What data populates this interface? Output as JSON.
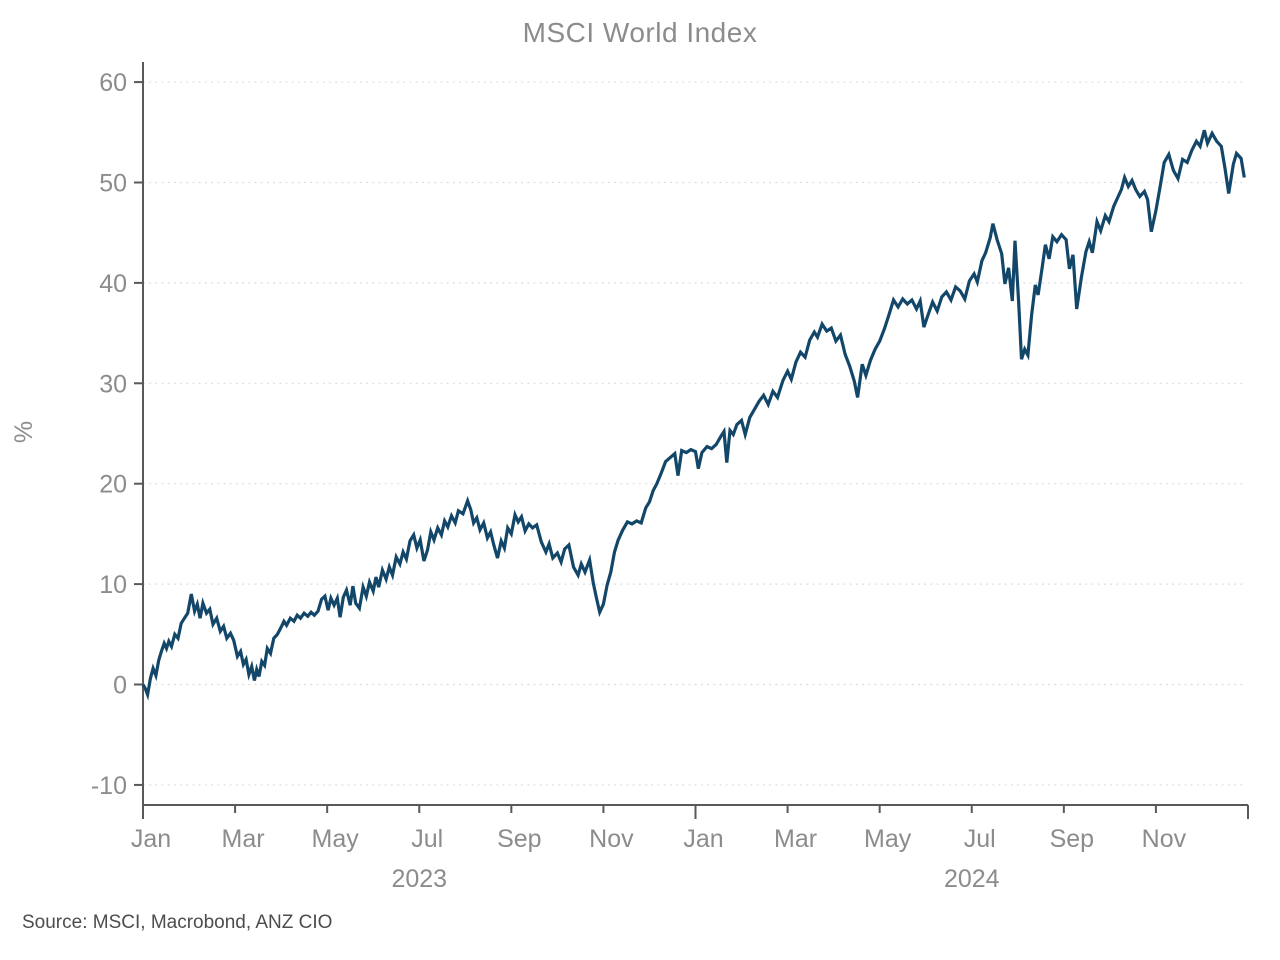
{
  "title": "MSCI World Index",
  "source_note": "Source: MSCI, Macrobond, ANZ CIO",
  "colors": {
    "background": "#ffffff",
    "line": "#13476a",
    "axis": "#595959",
    "tick_label": "#8c8c8c",
    "grid": "#dadada",
    "title": "#8c8c8c",
    "source": "#4d4d4d"
  },
  "chart_data": {
    "type": "line",
    "title": "MSCI World Index",
    "xlabel": "",
    "ylabel": "%",
    "ylim": [
      -12,
      62
    ],
    "yticks": [
      -10,
      0,
      10,
      20,
      30,
      40,
      50,
      60
    ],
    "grid": "horizontal-dotted",
    "legend_position": "none",
    "x_axis": {
      "unit": "months since Jan 2023",
      "range": [
        0,
        24
      ],
      "years": [
        {
          "label": "2023",
          "start_m": 0,
          "ticks": [
            {
              "label": "Jan",
              "m": 0
            },
            {
              "label": "Mar",
              "m": 2
            },
            {
              "label": "May",
              "m": 4
            },
            {
              "label": "Jul",
              "m": 6
            },
            {
              "label": "Sep",
              "m": 8
            },
            {
              "label": "Nov",
              "m": 10
            }
          ]
        },
        {
          "label": "2024",
          "start_m": 12,
          "ticks": [
            {
              "label": "Jan",
              "m": 12
            },
            {
              "label": "Mar",
              "m": 14
            },
            {
              "label": "May",
              "m": 16
            },
            {
              "label": "Jul",
              "m": 18
            },
            {
              "label": "Sep",
              "m": 20
            },
            {
              "label": "Nov",
              "m": 22
            }
          ]
        }
      ],
      "end_tick_m": 24
    },
    "series": [
      {
        "name": "MSCI World Index",
        "color": "#13476a",
        "points": [
          [
            0,
            0
          ],
          [
            0.05,
            -0.4
          ],
          [
            0.1,
            -1
          ],
          [
            0.16,
            0.6
          ],
          [
            0.22,
            1.6
          ],
          [
            0.28,
            0.9
          ],
          [
            0.34,
            2.4
          ],
          [
            0.4,
            3.3
          ],
          [
            0.46,
            4.1
          ],
          [
            0.51,
            3.6
          ],
          [
            0.56,
            4.3
          ],
          [
            0.62,
            3.8
          ],
          [
            0.69,
            5
          ],
          [
            0.76,
            4.6
          ],
          [
            0.83,
            6.1
          ],
          [
            0.9,
            6.6
          ],
          [
            0.97,
            7.1
          ],
          [
            1.05,
            9
          ],
          [
            1.12,
            7.3
          ],
          [
            1.18,
            8
          ],
          [
            1.24,
            6.6
          ],
          [
            1.3,
            8.1
          ],
          [
            1.38,
            7.1
          ],
          [
            1.45,
            7.5
          ],
          [
            1.52,
            6
          ],
          [
            1.6,
            6.6
          ],
          [
            1.68,
            5.3
          ],
          [
            1.75,
            5.8
          ],
          [
            1.82,
            4.6
          ],
          [
            1.9,
            5.1
          ],
          [
            1.97,
            4.4
          ],
          [
            2.05,
            2.8
          ],
          [
            2.12,
            3.3
          ],
          [
            2.18,
            2
          ],
          [
            2.24,
            2.5
          ],
          [
            2.3,
            1
          ],
          [
            2.36,
            1.8
          ],
          [
            2.42,
            0.4
          ],
          [
            2.47,
            1.5
          ],
          [
            2.52,
            0.8
          ],
          [
            2.58,
            2.3
          ],
          [
            2.64,
            1.9
          ],
          [
            2.7,
            3.6
          ],
          [
            2.77,
            3.1
          ],
          [
            2.84,
            4.6
          ],
          [
            2.92,
            5
          ],
          [
            3,
            5.7
          ],
          [
            3.06,
            6.3
          ],
          [
            3.12,
            5.9
          ],
          [
            3.2,
            6.6
          ],
          [
            3.28,
            6.3
          ],
          [
            3.35,
            6.9
          ],
          [
            3.42,
            6.6
          ],
          [
            3.5,
            7.1
          ],
          [
            3.58,
            6.8
          ],
          [
            3.65,
            7.2
          ],
          [
            3.72,
            6.9
          ],
          [
            3.8,
            7.3
          ],
          [
            3.88,
            8.5
          ],
          [
            3.95,
            8.8
          ],
          [
            4.02,
            7.4
          ],
          [
            4.08,
            8.6
          ],
          [
            4.15,
            7.9
          ],
          [
            4.22,
            8.6
          ],
          [
            4.28,
            6.7
          ],
          [
            4.35,
            8.7
          ],
          [
            4.42,
            9.4
          ],
          [
            4.5,
            7.9
          ],
          [
            4.56,
            9.8
          ],
          [
            4.62,
            8.1
          ],
          [
            4.7,
            7.6
          ],
          [
            4.78,
            9.7
          ],
          [
            4.85,
            8.8
          ],
          [
            4.92,
            10.2
          ],
          [
            5,
            9.3
          ],
          [
            5.06,
            10.7
          ],
          [
            5.12,
            9.7
          ],
          [
            5.2,
            11.4
          ],
          [
            5.28,
            10.5
          ],
          [
            5.35,
            11.7
          ],
          [
            5.42,
            10.9
          ],
          [
            5.5,
            12.7
          ],
          [
            5.58,
            12
          ],
          [
            5.65,
            13.2
          ],
          [
            5.72,
            12.5
          ],
          [
            5.8,
            14.3
          ],
          [
            5.88,
            14.9
          ],
          [
            5.95,
            13.6
          ],
          [
            6.02,
            14.4
          ],
          [
            6.1,
            12.3
          ],
          [
            6.18,
            13.4
          ],
          [
            6.25,
            15.2
          ],
          [
            6.32,
            14.4
          ],
          [
            6.4,
            15.6
          ],
          [
            6.48,
            14.9
          ],
          [
            6.55,
            16.3
          ],
          [
            6.62,
            15.7
          ],
          [
            6.7,
            16.8
          ],
          [
            6.78,
            16.1
          ],
          [
            6.85,
            17.3
          ],
          [
            6.95,
            17
          ],
          [
            7.05,
            18.3
          ],
          [
            7.12,
            17.4
          ],
          [
            7.18,
            16.1
          ],
          [
            7.25,
            16.6
          ],
          [
            7.32,
            15.4
          ],
          [
            7.4,
            16.1
          ],
          [
            7.48,
            14.6
          ],
          [
            7.55,
            15.2
          ],
          [
            7.62,
            13.9
          ],
          [
            7.7,
            12.6
          ],
          [
            7.78,
            14.3
          ],
          [
            7.85,
            13.6
          ],
          [
            7.92,
            15.6
          ],
          [
            8,
            15
          ],
          [
            8.08,
            16.9
          ],
          [
            8.15,
            16.2
          ],
          [
            8.22,
            16.7
          ],
          [
            8.3,
            15.3
          ],
          [
            8.38,
            16
          ],
          [
            8.46,
            15.6
          ],
          [
            8.55,
            15.9
          ],
          [
            8.65,
            14.2
          ],
          [
            8.75,
            13.2
          ],
          [
            8.82,
            14
          ],
          [
            8.9,
            12.6
          ],
          [
            9,
            13.1
          ],
          [
            9.08,
            12.2
          ],
          [
            9.16,
            13.5
          ],
          [
            9.25,
            13.9
          ],
          [
            9.35,
            11.7
          ],
          [
            9.45,
            10.9
          ],
          [
            9.52,
            12
          ],
          [
            9.6,
            11.2
          ],
          [
            9.7,
            12.4
          ],
          [
            9.78,
            10.1
          ],
          [
            9.85,
            8.6
          ],
          [
            9.92,
            7.2
          ],
          [
            10,
            8
          ],
          [
            10.08,
            9.9
          ],
          [
            10.16,
            11.2
          ],
          [
            10.24,
            13.2
          ],
          [
            10.32,
            14.4
          ],
          [
            10.42,
            15.4
          ],
          [
            10.52,
            16.2
          ],
          [
            10.62,
            16
          ],
          [
            10.72,
            16.3
          ],
          [
            10.82,
            16.1
          ],
          [
            10.92,
            17.6
          ],
          [
            11,
            18.2
          ],
          [
            11.08,
            19.3
          ],
          [
            11.16,
            20
          ],
          [
            11.25,
            21
          ],
          [
            11.35,
            22.2
          ],
          [
            11.45,
            22.6
          ],
          [
            11.55,
            23
          ],
          [
            11.62,
            20.8
          ],
          [
            11.7,
            23.3
          ],
          [
            11.8,
            23.1
          ],
          [
            11.9,
            23.4
          ],
          [
            12,
            23.2
          ],
          [
            12.06,
            21.5
          ],
          [
            12.14,
            23.1
          ],
          [
            12.25,
            23.7
          ],
          [
            12.35,
            23.5
          ],
          [
            12.45,
            23.9
          ],
          [
            12.55,
            24.7
          ],
          [
            12.62,
            25.2
          ],
          [
            12.68,
            22.1
          ],
          [
            12.75,
            25.3
          ],
          [
            12.82,
            24.9
          ],
          [
            12.9,
            25.9
          ],
          [
            13,
            26.3
          ],
          [
            13.08,
            24.9
          ],
          [
            13.18,
            26.6
          ],
          [
            13.28,
            27.4
          ],
          [
            13.38,
            28.2
          ],
          [
            13.48,
            28.8
          ],
          [
            13.58,
            27.9
          ],
          [
            13.68,
            29.2
          ],
          [
            13.78,
            28.6
          ],
          [
            13.9,
            30.3
          ],
          [
            14,
            31.2
          ],
          [
            14.08,
            30.4
          ],
          [
            14.18,
            32.1
          ],
          [
            14.28,
            33.1
          ],
          [
            14.38,
            32.6
          ],
          [
            14.48,
            34.3
          ],
          [
            14.58,
            35.1
          ],
          [
            14.65,
            34.6
          ],
          [
            14.75,
            35.9
          ],
          [
            14.85,
            35.2
          ],
          [
            14.95,
            35.5
          ],
          [
            15.05,
            34.2
          ],
          [
            15.15,
            34.8
          ],
          [
            15.25,
            32.9
          ],
          [
            15.35,
            31.7
          ],
          [
            15.45,
            30.2
          ],
          [
            15.52,
            28.6
          ],
          [
            15.62,
            31.9
          ],
          [
            15.7,
            30.8
          ],
          [
            15.8,
            32.3
          ],
          [
            15.9,
            33.4
          ],
          [
            16,
            34.2
          ],
          [
            16.1,
            35.4
          ],
          [
            16.2,
            36.8
          ],
          [
            16.3,
            38.3
          ],
          [
            16.4,
            37.6
          ],
          [
            16.5,
            38.4
          ],
          [
            16.6,
            37.9
          ],
          [
            16.7,
            38.3
          ],
          [
            16.8,
            37.4
          ],
          [
            16.88,
            38.2
          ],
          [
            16.96,
            35.6
          ],
          [
            17.05,
            36.8
          ],
          [
            17.15,
            38.1
          ],
          [
            17.25,
            37.2
          ],
          [
            17.35,
            38.6
          ],
          [
            17.45,
            39.1
          ],
          [
            17.55,
            38.3
          ],
          [
            17.65,
            39.6
          ],
          [
            17.75,
            39.2
          ],
          [
            17.85,
            38.4
          ],
          [
            17.95,
            40.2
          ],
          [
            18.05,
            40.9
          ],
          [
            18.12,
            40.1
          ],
          [
            18.22,
            42.2
          ],
          [
            18.3,
            43
          ],
          [
            18.4,
            44.5
          ],
          [
            18.46,
            45.9
          ],
          [
            18.55,
            44.3
          ],
          [
            18.65,
            42.9
          ],
          [
            18.72,
            39.9
          ],
          [
            18.8,
            41.5
          ],
          [
            18.88,
            38.2
          ],
          [
            18.94,
            44.2
          ],
          [
            19.02,
            38
          ],
          [
            19.08,
            32.4
          ],
          [
            19.15,
            33.4
          ],
          [
            19.22,
            32.8
          ],
          [
            19.3,
            36.8
          ],
          [
            19.38,
            39.8
          ],
          [
            19.44,
            38.8
          ],
          [
            19.52,
            41.2
          ],
          [
            19.6,
            43.8
          ],
          [
            19.68,
            42.4
          ],
          [
            19.76,
            44.6
          ],
          [
            19.85,
            44.1
          ],
          [
            19.95,
            44.8
          ],
          [
            20.05,
            44.3
          ],
          [
            20.12,
            41.4
          ],
          [
            20.2,
            42.8
          ],
          [
            20.28,
            37.4
          ],
          [
            20.38,
            40.5
          ],
          [
            20.48,
            43.1
          ],
          [
            20.55,
            44.1
          ],
          [
            20.62,
            43
          ],
          [
            20.72,
            46.1
          ],
          [
            20.8,
            45.2
          ],
          [
            20.9,
            46.7
          ],
          [
            20.98,
            46.1
          ],
          [
            21.08,
            47.6
          ],
          [
            21.16,
            48.4
          ],
          [
            21.25,
            49.3
          ],
          [
            21.32,
            50.5
          ],
          [
            21.4,
            49.6
          ],
          [
            21.48,
            50.2
          ],
          [
            21.56,
            49.3
          ],
          [
            21.65,
            48.6
          ],
          [
            21.75,
            49.1
          ],
          [
            21.82,
            48.3
          ],
          [
            21.9,
            45.1
          ],
          [
            22,
            47.2
          ],
          [
            22.1,
            49.8
          ],
          [
            22.18,
            52
          ],
          [
            22.28,
            52.8
          ],
          [
            22.38,
            51.2
          ],
          [
            22.48,
            50.4
          ],
          [
            22.58,
            52.3
          ],
          [
            22.68,
            52
          ],
          [
            22.78,
            53.2
          ],
          [
            22.88,
            54.1
          ],
          [
            22.96,
            53.6
          ],
          [
            23.05,
            55.2
          ],
          [
            23.12,
            53.9
          ],
          [
            23.22,
            54.9
          ],
          [
            23.32,
            54.1
          ],
          [
            23.42,
            53.6
          ],
          [
            23.5,
            51.4
          ],
          [
            23.58,
            48.9
          ],
          [
            23.68,
            51.8
          ],
          [
            23.75,
            52.9
          ],
          [
            23.85,
            52.4
          ],
          [
            23.92,
            50.5
          ]
        ]
      }
    ]
  }
}
